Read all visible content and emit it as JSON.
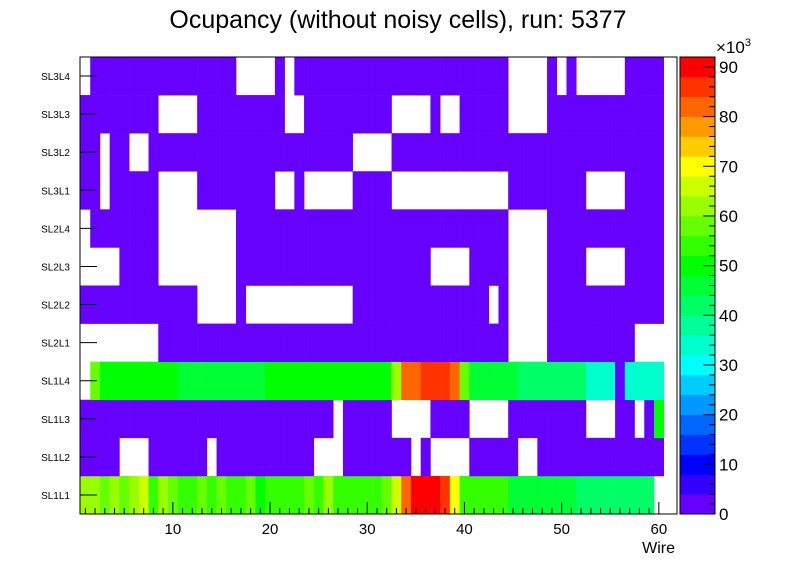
{
  "chart_data": {
    "type": "heatmap",
    "title": "Ocupancy (without noisy cells), run: 5377",
    "xlabel": "Wire",
    "ylabel": "",
    "xlim": [
      0,
      60
    ],
    "xticks": [
      10,
      20,
      30,
      40,
      50,
      60
    ],
    "zlim": [
      0,
      92000
    ],
    "z_exponent_label": "×10³",
    "z_exponent_base": "×10",
    "z_exponent_power": "3",
    "zticks": [
      {
        "value": 0,
        "label": "0"
      },
      {
        "value": 10,
        "label": "10"
      },
      {
        "value": 20,
        "label": "20"
      },
      {
        "value": 30,
        "label": "30"
      },
      {
        "value": 40,
        "label": "40"
      },
      {
        "value": 50,
        "label": "50"
      },
      {
        "value": 60,
        "label": "60"
      },
      {
        "value": 70,
        "label": "70"
      },
      {
        "value": 80,
        "label": "80"
      },
      {
        "value": 90,
        "label": "90"
      }
    ],
    "palette": [
      "#6600ff",
      "#3300ff",
      "#0000ff",
      "#0033ff",
      "#0066ff",
      "#0099ff",
      "#00ccff",
      "#00ffff",
      "#00ffcc",
      "#00ff99",
      "#00ff66",
      "#00ff33",
      "#00ff00",
      "#33ff00",
      "#66ff00",
      "#99ff00",
      "#ccff00",
      "#ffff00",
      "#ffcc00",
      "#ff9900",
      "#ff6600",
      "#ff3300",
      "#ff0000"
    ],
    "layers": [
      {
        "name": "SL1L1",
        "runs": "1:61000,2:63000,3:58000,4:62000,5:56000,6:60000,7:64000,8:55000,9:62000,10:57000,11:53000,12:53000,13:56000,14:54000,15:56000,16:53000,17:53000,18:56000,19:52000,20:55000,21:55000,22:55000,23:54000,24:56000,25:54000,26:60000,27:55000,28:55000,29:55000,30:55000,31:55000,32:58000,33:67000,34:82000,35:90000,36:90000,37:90000,38:84000,39:70000,40:55000,41:55000,42:55000,43:55000,44:55000,45:46000,46:46000,47:46000,48:46000,49:46000,50:46000,51:46000,52:43000,53:43000,54:43000,55:43000,56:43000,57:43000,58:43000,59:43000,60:0"
      },
      {
        "name": "SL1L2",
        "runs": "1-4:1000,5-7:0,8-13:1000,14:0,15-24:1000,25-27:0,28-34:1000,35:0,36:1000,37-40:0,41-45:1000,46-47:0,48-60:1000"
      },
      {
        "name": "SL1L3",
        "runs": "1-26:1000,27:0,28-32:1000,33-36:0,37-40:1000,41-44:0,45-52:1000,53-55:0,56-57:1000,58:0,59:1000,60:52000"
      },
      {
        "name": "SL1L4",
        "runs": "1:0,2:57000,3-10:52000,11-19:45000,20-32:52000,33:62000,34-35:80000,36-38:85000,39:80000,40:58000,41-45:45000,46-52:43000,53-55:33000,56:1000,57-60:33000"
      },
      {
        "name": "SL2L1",
        "runs": "1-8:0,9-44:1000,45-48:0,49-57:1000,58-60:0"
      },
      {
        "name": "SL2L2",
        "runs": "1-12:1000,13-16:0,17:1000,18-28:0,29-42:1000,43:0,44:1000,45-48:0,49-52:1000,53-60:1000"
      },
      {
        "name": "SL2L3",
        "runs": "1-4:0,5-8:1000,9-16:0,17-36:1000,37-40:0,41-44:1000,45-48:0,49-52:1000,53-56:0,57-60:1000"
      },
      {
        "name": "SL2L4",
        "runs": "1:0,2-8:1000,9-16:0,17-44:1000,45-48:0,49-60:1000"
      },
      {
        "name": "SL3L1",
        "runs": "1-2:1000,3:0,4-8:1000,9-12:0,13-20:1000,21-22:0,23:1000,24-28:0,29-32:1000,33-44:0,45-52:1000,53-56:0,57-60:1000"
      },
      {
        "name": "SL3L2",
        "runs": "1-2:1000,3:0,4-5:1000,6-7:0,8-28:1000,29-32:0,33-44:1000,45-60:1000"
      },
      {
        "name": "SL3L3",
        "runs": "1-8:1000,9-12:0,13-21:1000,22-23:0,24-30:1000,31-32:1000,33-36:0,37:1000,38-39:0,40-44:1000,45-48:0,49-60:1000"
      },
      {
        "name": "SL3L4",
        "runs": "1:0,2-16:1000,17-20:0,21:1000,22:0,23-44:1000,45-48:0,49:1000,50:0,51:1000,52-56:0,57-60:1000"
      }
    ]
  }
}
